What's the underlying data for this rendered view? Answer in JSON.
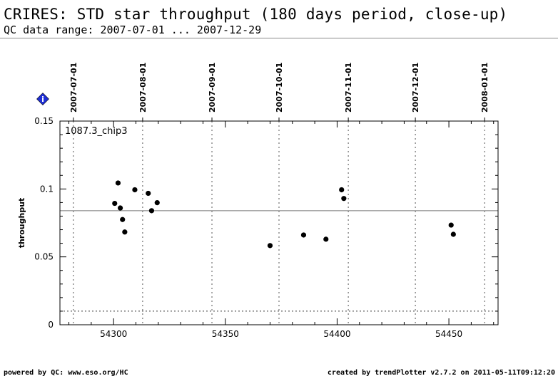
{
  "header": {
    "title": "CRIRES: STD star throughput (180 days period, close-up)",
    "subtitle": "QC data range: 2007-07-01 ... 2007-12-29"
  },
  "footer": {
    "left": "powered by QC: www.eso.org/HC",
    "right": "created by trendPlotter v2.7.2 on 2011-05-11T09:12:20"
  },
  "info_badge": {
    "icon": "info-diamond-icon",
    "glyph": "i",
    "color": "#1f2fd6"
  },
  "chart_data": {
    "type": "scatter",
    "title": "",
    "xlabel": "",
    "ylabel": "throughput",
    "xlim": [
      54276,
      54472
    ],
    "ylim": [
      0,
      0.15
    ],
    "x_ticks": [
      54300,
      54350,
      54400,
      54450
    ],
    "x_tick_labels": [
      "54300",
      "54350",
      "54400",
      "54450"
    ],
    "y_ticks": [
      0,
      0.05,
      0.1,
      0.15
    ],
    "y_tick_labels": [
      "0",
      "0.05",
      "0.1",
      "0.15"
    ],
    "panel_label": "1087.3_chip3",
    "date_lines": [
      {
        "x": 54282,
        "label": "2007-07-01"
      },
      {
        "x": 54313,
        "label": "2007-08-01"
      },
      {
        "x": 54344,
        "label": "2007-09-01"
      },
      {
        "x": 54374,
        "label": "2007-10-01"
      },
      {
        "x": 54405,
        "label": "2007-11-01"
      },
      {
        "x": 54435,
        "label": "2007-12-01"
      },
      {
        "x": 54466,
        "label": "2008-01-01"
      }
    ],
    "mean_line": 0.084,
    "lower_line": 0.01,
    "series": [
      {
        "color": "#000000",
        "points": [
          {
            "x": 54300.5,
            "y": 0.0894
          },
          {
            "x": 54302.0,
            "y": 0.1044
          },
          {
            "x": 54303.0,
            "y": 0.086
          },
          {
            "x": 54304.0,
            "y": 0.0775
          },
          {
            "x": 54305.0,
            "y": 0.0683
          },
          {
            "x": 54309.5,
            "y": 0.0994
          },
          {
            "x": 54315.5,
            "y": 0.0968
          },
          {
            "x": 54317.0,
            "y": 0.084
          },
          {
            "x": 54319.5,
            "y": 0.0899
          },
          {
            "x": 54370.0,
            "y": 0.0583
          },
          {
            "x": 54385.0,
            "y": 0.0661
          },
          {
            "x": 54395.0,
            "y": 0.063
          },
          {
            "x": 54402.0,
            "y": 0.0994
          },
          {
            "x": 54403.0,
            "y": 0.093
          },
          {
            "x": 54451.0,
            "y": 0.0734
          },
          {
            "x": 54452.0,
            "y": 0.0666
          }
        ]
      }
    ]
  }
}
